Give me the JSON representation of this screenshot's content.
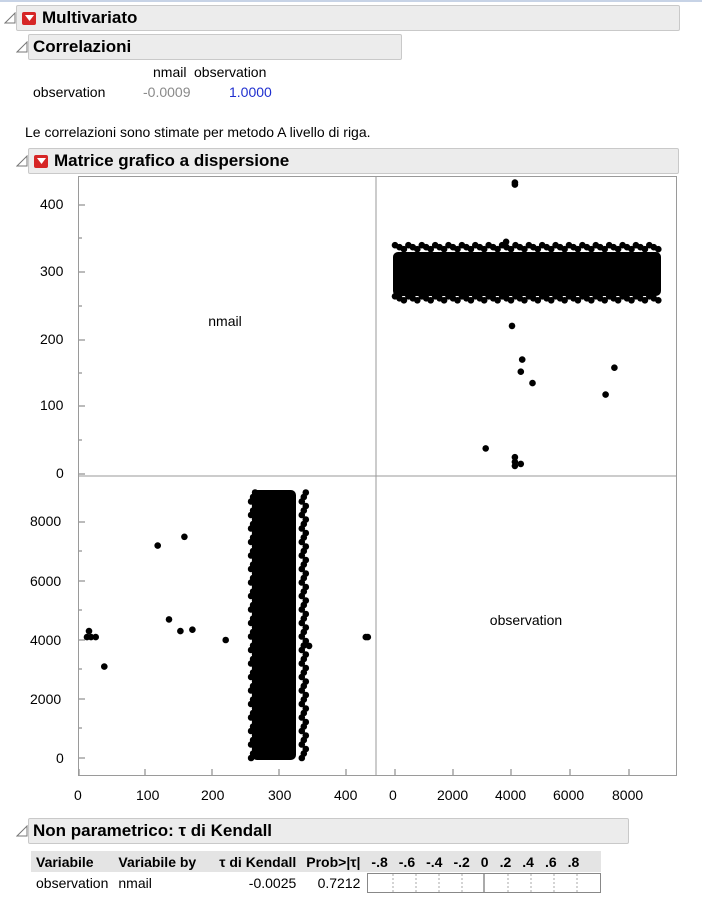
{
  "multivariate": {
    "title": "Multivariato"
  },
  "correlations": {
    "title": "Correlazioni",
    "col_headers": [
      "nmail",
      "observation"
    ],
    "row_label": "observation",
    "values": [
      "-0.0009",
      "1.0000"
    ],
    "note": "Le correlazioni sono stimate per metodo A livello di riga."
  },
  "scatter_matrix": {
    "title": "Matrice grafico a dispersione",
    "diag_labels": [
      "nmail",
      "observation"
    ],
    "y_ticks_top": [
      "400",
      "300",
      "200",
      "100",
      "0"
    ],
    "y_ticks_bottom": [
      "8000",
      "6000",
      "4000",
      "2000",
      "0"
    ],
    "x_ticks_left": [
      "0",
      "100",
      "200",
      "300",
      "400"
    ],
    "x_ticks_right": [
      "0",
      "2000",
      "4000",
      "6000",
      "8000"
    ]
  },
  "chart_data": {
    "type": "scatter",
    "variables": [
      "nmail",
      "observation"
    ],
    "nmail_range": [
      0,
      430
    ],
    "observation_range": [
      0,
      9000
    ],
    "main_cluster": {
      "nmail_center": 290,
      "nmail_spread": [
        265,
        335
      ],
      "observation_range": [
        0,
        9000
      ]
    },
    "outliers": [
      {
        "observation": 4100,
        "nmail": 430
      },
      {
        "observation": 3800,
        "nmail": 345
      },
      {
        "observation": 4000,
        "nmail": 220
      },
      {
        "observation": 4350,
        "nmail": 170
      },
      {
        "observation": 4300,
        "nmail": 152
      },
      {
        "observation": 4700,
        "nmail": 135
      },
      {
        "observation": 7500,
        "nmail": 158
      },
      {
        "observation": 7200,
        "nmail": 118
      },
      {
        "observation": 3100,
        "nmail": 38
      },
      {
        "observation": 4100,
        "nmail": 25
      },
      {
        "observation": 4100,
        "nmail": 18
      },
      {
        "observation": 4100,
        "nmail": 12
      },
      {
        "observation": 4300,
        "nmail": 15
      },
      {
        "observation": 4100,
        "nmail": 433
      }
    ]
  },
  "kendall": {
    "title": "Non parametrico: τ di Kendall",
    "headers": [
      "Variabile",
      "Variabile by",
      "τ di Kendall",
      "Prob>|τ|"
    ],
    "bar_ticks": [
      "-.8",
      "-.6",
      "-.4",
      "-.2",
      "0",
      ".2",
      ".4",
      ".6",
      ".8"
    ],
    "row": {
      "variable": "observation",
      "by": "nmail",
      "tau": "-0.0025",
      "prob": "0.7212"
    }
  }
}
